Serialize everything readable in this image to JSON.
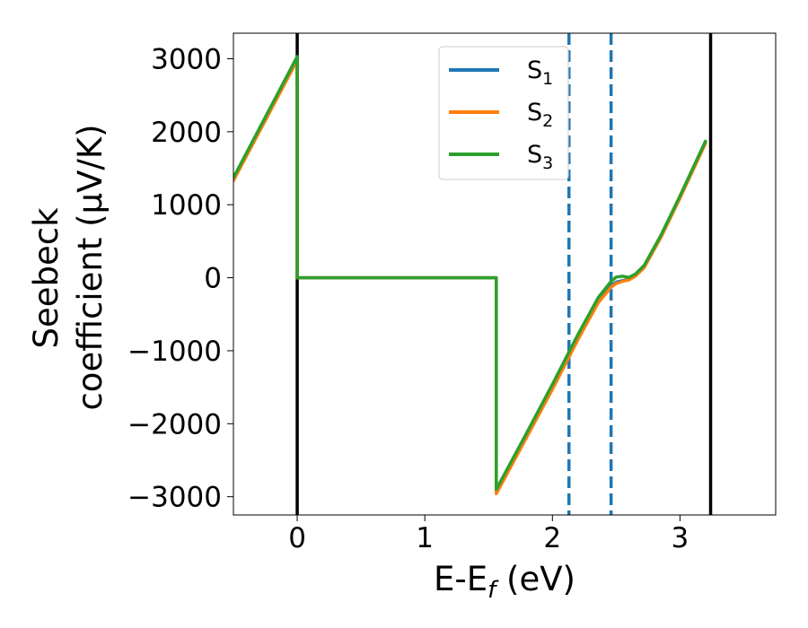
{
  "chart_data": {
    "type": "line",
    "xlabel": "E-E",
    "xlabel_sub": "f",
    "xlabel_unit": " (eV)",
    "ylabel_line1": "Seebeck",
    "ylabel_line2": "coefficient  (μV/K)",
    "xlim": [
      -0.5,
      3.75
    ],
    "ylim": [
      -3250,
      3350
    ],
    "x_ticks": [
      0,
      1,
      2,
      3
    ],
    "x_tick_labels": [
      "0",
      "1",
      "2",
      "3"
    ],
    "y_ticks": [
      3000,
      2000,
      1000,
      0,
      -1000,
      -2000,
      -3000
    ],
    "y_tick_labels": [
      "3000",
      "2000",
      "1000",
      "0",
      "−1000",
      "−2000",
      "−3000"
    ],
    "grid": false,
    "legend_position": "top-center",
    "vertical_lines": [
      {
        "x": 0.0,
        "style": "solid",
        "color": "#000000"
      },
      {
        "x": 3.24,
        "style": "solid",
        "color": "#000000"
      },
      {
        "x": 2.13,
        "style": "dashed",
        "color": "#1f77b4"
      },
      {
        "x": 2.46,
        "style": "dashed",
        "color": "#1f77b4"
      }
    ],
    "series": [
      {
        "name": "S",
        "sub": "1",
        "color": "#1f77b4",
        "x": [
          -0.5,
          0.0,
          0.0,
          1.56,
          1.56,
          1.8,
          2.0,
          2.2,
          2.36,
          2.46,
          2.5,
          2.55,
          2.6,
          2.65,
          2.72,
          2.85,
          3.0,
          3.2
        ],
        "y": [
          1350,
          3000,
          0,
          0,
          -2930,
          -2150,
          -1500,
          -820,
          -310,
          -110,
          -60,
          -40,
          -20,
          30,
          150,
          560,
          1100,
          1850
        ]
      },
      {
        "name": "S",
        "sub": "2",
        "color": "#ff7f0e",
        "x": [
          -0.5,
          0.0,
          0.0,
          1.56,
          1.56,
          1.8,
          2.0,
          2.2,
          2.36,
          2.46,
          2.5,
          2.55,
          2.6,
          2.65,
          2.72,
          2.85,
          3.0,
          3.2
        ],
        "y": [
          1330,
          2980,
          0,
          0,
          -2960,
          -2180,
          -1530,
          -850,
          -340,
          -130,
          -80,
          -50,
          -30,
          20,
          140,
          550,
          1090,
          1840
        ]
      },
      {
        "name": "S",
        "sub": "3",
        "color": "#2ca02c",
        "x": [
          -0.5,
          0.0,
          0.0,
          1.56,
          1.56,
          1.8,
          2.0,
          2.2,
          2.36,
          2.46,
          2.5,
          2.55,
          2.6,
          2.65,
          2.72,
          2.85,
          3.0,
          3.2
        ],
        "y": [
          1370,
          3030,
          0,
          0,
          -2900,
          -2120,
          -1460,
          -780,
          -270,
          -50,
          10,
          20,
          5,
          50,
          170,
          580,
          1120,
          1870
        ]
      }
    ]
  }
}
